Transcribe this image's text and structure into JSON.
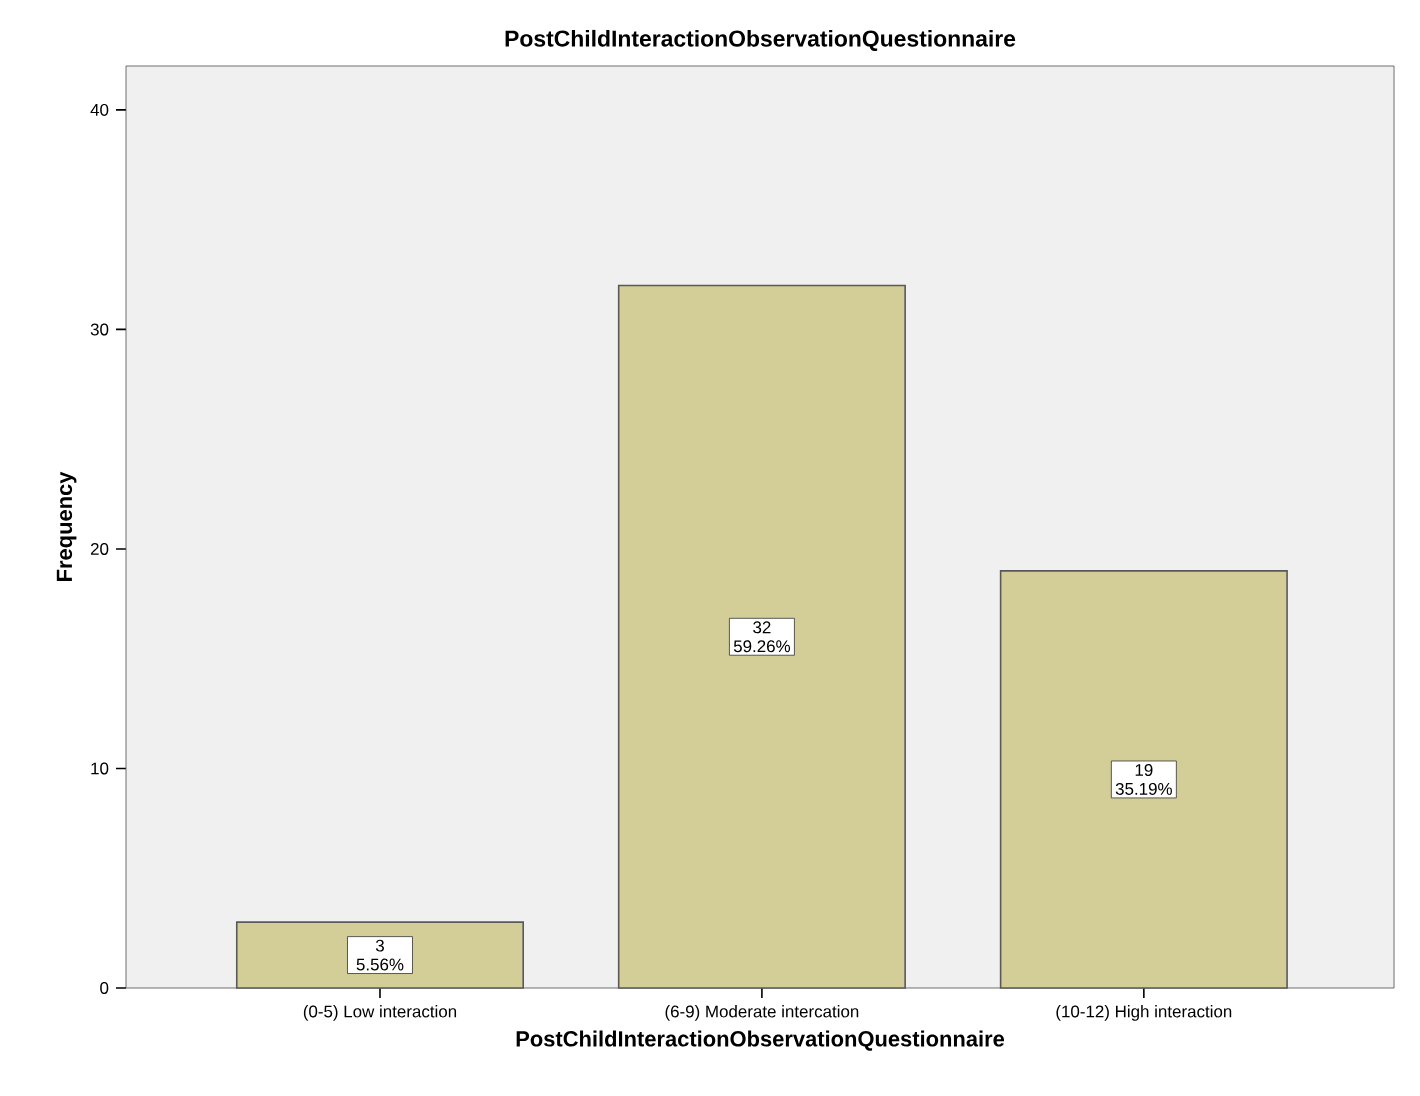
{
  "chart_data": {
    "type": "bar",
    "title": "PostChildInteractionObservationQuestionnaire",
    "xlabel": "PostChildInteractionObservationQuestionnaire",
    "ylabel": "Frequency",
    "categories": [
      "(0-5) Low interaction",
      "(6-9) Moderate intercation",
      "(10-12) High interaction"
    ],
    "values": [
      3,
      32,
      19
    ],
    "color": "#d3ce97",
    "value_labels": [
      "3 5.56%",
      "32 59.26%",
      "19 35.19%"
    ],
    "ylim": [
      0,
      42
    ],
    "yticks": [
      0,
      10,
      20,
      30,
      40
    ]
  }
}
